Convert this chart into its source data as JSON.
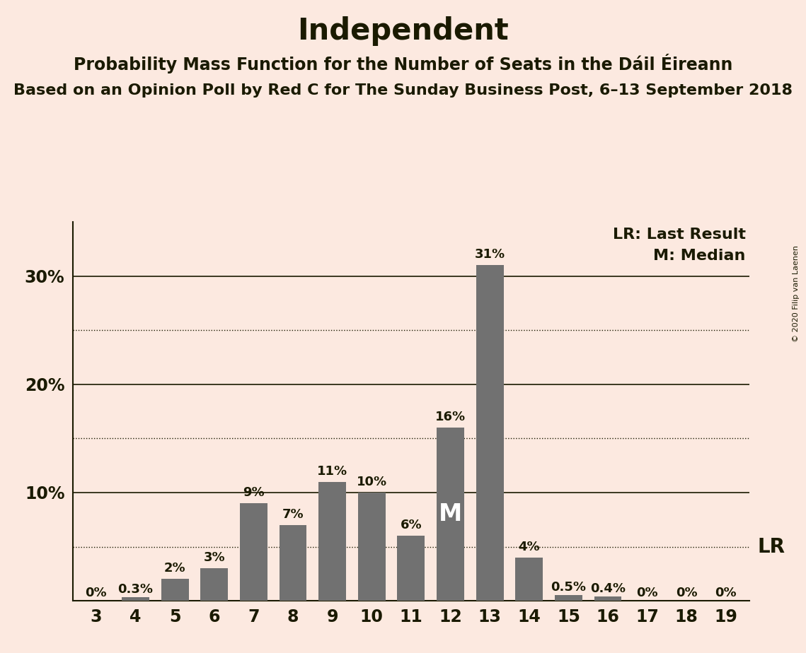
{
  "title": "Independent",
  "subtitle1": "Probability Mass Function for the Number of Seats in the Dáil Éireann",
  "subtitle2": "Based on an Opinion Poll by Red C for The Sunday Business Post, 6–13 September 2018",
  "copyright": "© 2020 Filip van Laenen",
  "categories": [
    3,
    4,
    5,
    6,
    7,
    8,
    9,
    10,
    11,
    12,
    13,
    14,
    15,
    16,
    17,
    18,
    19
  ],
  "values": [
    0.0,
    0.3,
    2.0,
    3.0,
    9.0,
    7.0,
    11.0,
    10.0,
    6.0,
    16.0,
    31.0,
    4.0,
    0.5,
    0.4,
    0.0,
    0.0,
    0.0
  ],
  "bar_color": "#717171",
  "background_color": "#fce9e0",
  "text_color": "#1a1a00",
  "ylim": [
    0,
    35
  ],
  "solid_gridlines": [
    10,
    20,
    30
  ],
  "dotted_gridlines": [
    5,
    15,
    25
  ],
  "lr_seat": 14,
  "lr_value": 5,
  "median_value": 12,
  "legend_lr": "LR: Last Result",
  "legend_m": "M: Median",
  "bar_labels": [
    "0%",
    "0.3%",
    "2%",
    "3%",
    "9%",
    "7%",
    "11%",
    "10%",
    "6%",
    "16%",
    "31%",
    "4%",
    "0.5%",
    "0.4%",
    "0%",
    "0%",
    "0%"
  ],
  "title_fontsize": 30,
  "subtitle1_fontsize": 17,
  "subtitle2_fontsize": 16,
  "label_fontsize": 13,
  "tick_fontsize": 17,
  "legend_fontsize": 16,
  "bar_width": 0.7
}
